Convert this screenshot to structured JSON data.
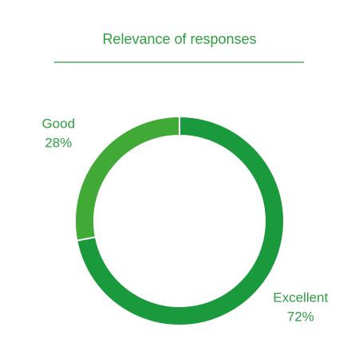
{
  "chart_data": {
    "type": "donut",
    "title": "Relevance of responses",
    "categories": [
      "Excellent",
      "Good"
    ],
    "values": [
      72,
      28
    ],
    "value_labels": [
      "72%",
      "28%"
    ],
    "colors": [
      "#1a9a3c",
      "#41aa36"
    ]
  }
}
